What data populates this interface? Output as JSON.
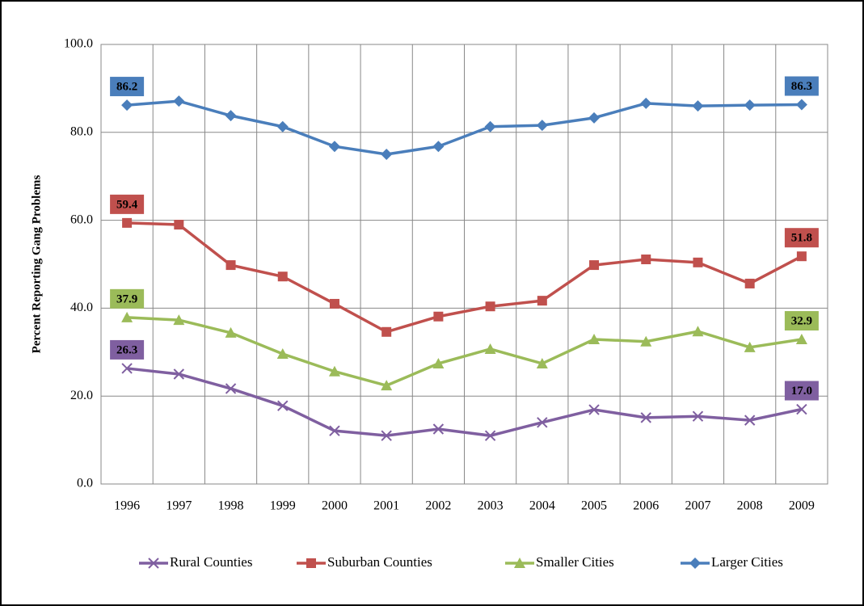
{
  "chart_data": {
    "type": "line",
    "y_label": "Percent Reporting Gang Problems",
    "categories": [
      "1996",
      "1997",
      "1998",
      "1999",
      "2000",
      "2001",
      "2002",
      "2003",
      "2004",
      "2005",
      "2006",
      "2007",
      "2008",
      "2009"
    ],
    "ylim": [
      0,
      100
    ],
    "yticks": [
      {
        "value": 0,
        "label": "0.0"
      },
      {
        "value": 20,
        "label": "20.0"
      },
      {
        "value": 40,
        "label": "40.0"
      },
      {
        "value": 60,
        "label": "60.0"
      },
      {
        "value": 80,
        "label": "80.0"
      },
      {
        "value": 100,
        "label": "100.0"
      }
    ],
    "grid": true,
    "legend": "bottom",
    "series": [
      {
        "name": "Rural Counties",
        "color": "#7f5fa0",
        "marker": "x",
        "values": [
          26.3,
          25.0,
          21.7,
          17.8,
          12.1,
          11.0,
          12.5,
          11.0,
          14.0,
          16.9,
          15.1,
          15.4,
          14.5,
          17.0
        ],
        "value_labels": [
          "26.3",
          null,
          null,
          null,
          null,
          null,
          null,
          null,
          null,
          null,
          null,
          null,
          null,
          "17.0"
        ]
      },
      {
        "name": "Suburban Counties",
        "color": "#c0504d",
        "marker": "square",
        "values": [
          59.4,
          59.0,
          49.8,
          47.2,
          41.0,
          34.6,
          38.1,
          40.4,
          41.7,
          49.8,
          51.1,
          50.4,
          45.6,
          51.8
        ],
        "value_labels": [
          "59.4",
          null,
          null,
          null,
          null,
          null,
          null,
          null,
          null,
          null,
          null,
          null,
          null,
          "51.8"
        ]
      },
      {
        "name": "Smaller Cities",
        "color": "#9bbb59",
        "marker": "triangle",
        "values": [
          37.9,
          37.3,
          34.4,
          29.6,
          25.6,
          22.4,
          27.4,
          30.7,
          27.4,
          32.9,
          32.4,
          34.7,
          31.1,
          32.9
        ],
        "value_labels": [
          "37.9",
          null,
          null,
          null,
          null,
          null,
          null,
          null,
          null,
          null,
          null,
          null,
          null,
          "32.9"
        ]
      },
      {
        "name": "Larger Cities",
        "color": "#4a7ebb",
        "marker": "diamond",
        "values": [
          86.2,
          87.1,
          83.8,
          81.3,
          76.8,
          75.0,
          76.8,
          81.3,
          81.6,
          83.3,
          86.6,
          86.0,
          86.2,
          86.3
        ],
        "value_labels": [
          "86.2",
          null,
          null,
          null,
          null,
          null,
          null,
          null,
          null,
          null,
          null,
          null,
          null,
          "86.3"
        ]
      }
    ]
  }
}
